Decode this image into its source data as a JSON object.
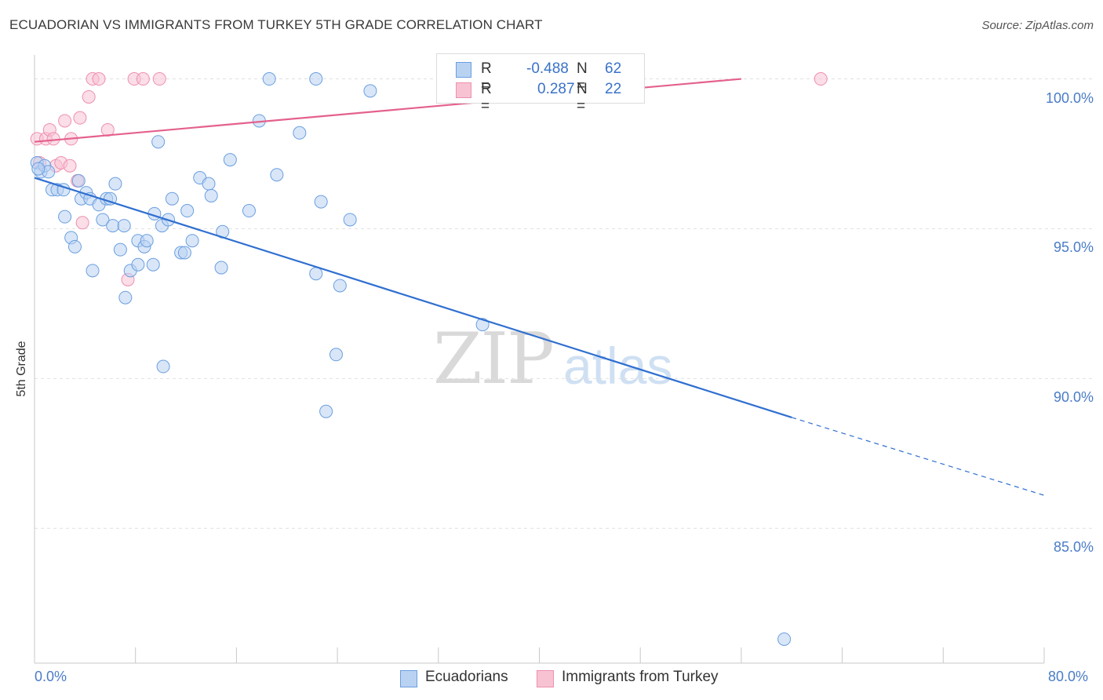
{
  "title": "ECUADORIAN VS IMMIGRANTS FROM TURKEY 5TH GRADE CORRELATION CHART",
  "source": "Source: ZipAtlas.com",
  "watermark": {
    "zip": "ZIP",
    "atlas": "atlas"
  },
  "colors": {
    "blue": "#6a9fe0",
    "blue_fill": "#b9d2f2",
    "blue_line": "#2f6fd0",
    "pink": "#ee8fae",
    "pink_fill": "#f7c3d3",
    "pink_line": "#e4618c",
    "tick_text": "#4a7cc7",
    "grid": "#e0e0e0"
  },
  "legend": {
    "rows": [
      {
        "r_label": "R =",
        "r_value": "-0.488",
        "n_label": "N =",
        "n_value": "62"
      },
      {
        "r_label": "R =",
        "r_value": "0.287",
        "n_label": "N =",
        "n_value": "22"
      }
    ]
  },
  "bottom_legend": [
    "Ecuadorians",
    "Immigrants from Turkey"
  ],
  "chart_data": {
    "type": "scatter",
    "title": "ECUADORIAN VS IMMIGRANTS FROM TURKEY 5TH GRADE CORRELATION CHART",
    "xlabel": "",
    "ylabel": "5th Grade",
    "xlim": [
      0,
      80
    ],
    "ylim": [
      80.5,
      100.8
    ],
    "x_tick_labels": [
      "0.0%",
      "80.0%"
    ],
    "y_ticks": [
      85,
      90,
      95,
      100
    ],
    "y_tick_labels": [
      "85.0%",
      "90.0%",
      "95.0%",
      "100.0%"
    ],
    "grid": true,
    "series": [
      {
        "name": "Ecuadorians",
        "color": "blue",
        "points": [
          [
            0.2,
            97.2
          ],
          [
            0.5,
            96.9
          ],
          [
            0.8,
            97.1
          ],
          [
            1.1,
            96.9
          ],
          [
            1.4,
            96.3
          ],
          [
            1.8,
            96.3
          ],
          [
            2.3,
            96.3
          ],
          [
            2.4,
            95.4
          ],
          [
            2.9,
            94.7
          ],
          [
            3.2,
            94.4
          ],
          [
            3.5,
            96.6
          ],
          [
            3.7,
            96.0
          ],
          [
            4.1,
            96.2
          ],
          [
            4.4,
            96.0
          ],
          [
            4.6,
            93.6
          ],
          [
            5.1,
            95.8
          ],
          [
            5.4,
            95.3
          ],
          [
            5.7,
            96.0
          ],
          [
            6.2,
            95.1
          ],
          [
            6.4,
            96.5
          ],
          [
            6.8,
            94.3
          ],
          [
            7.1,
            95.1
          ],
          [
            7.2,
            92.7
          ],
          [
            7.6,
            93.6
          ],
          [
            8.2,
            93.8
          ],
          [
            8.2,
            94.6
          ],
          [
            8.7,
            94.4
          ],
          [
            8.9,
            94.6
          ],
          [
            9.4,
            93.8
          ],
          [
            9.5,
            95.5
          ],
          [
            9.8,
            97.9
          ],
          [
            10.1,
            95.1
          ],
          [
            10.2,
            90.4
          ],
          [
            10.6,
            95.3
          ],
          [
            10.9,
            96.0
          ],
          [
            11.6,
            94.2
          ],
          [
            11.9,
            94.2
          ],
          [
            12.1,
            95.6
          ],
          [
            12.5,
            94.6
          ],
          [
            13.1,
            96.7
          ],
          [
            13.8,
            96.5
          ],
          [
            14.0,
            96.1
          ],
          [
            14.8,
            93.7
          ],
          [
            14.9,
            94.9
          ],
          [
            15.5,
            97.3
          ],
          [
            17.0,
            95.6
          ],
          [
            17.8,
            98.6
          ],
          [
            18.6,
            100.0
          ],
          [
            19.2,
            96.8
          ],
          [
            21.0,
            98.2
          ],
          [
            22.3,
            100.0
          ],
          [
            22.3,
            93.5
          ],
          [
            22.7,
            95.9
          ],
          [
            23.1,
            88.9
          ],
          [
            23.9,
            90.8
          ],
          [
            24.2,
            93.1
          ],
          [
            25.0,
            95.3
          ],
          [
            26.6,
            99.6
          ],
          [
            35.5,
            91.8
          ],
          [
            59.4,
            81.3
          ],
          [
            0.3,
            97.0
          ],
          [
            6.0,
            96.0
          ]
        ]
      },
      {
        "name": "Immigrants from Turkey",
        "color": "pink",
        "points": [
          [
            0.2,
            98.0
          ],
          [
            0.4,
            97.2
          ],
          [
            0.9,
            98.0
          ],
          [
            1.2,
            98.3
          ],
          [
            1.5,
            98.0
          ],
          [
            1.7,
            97.1
          ],
          [
            2.1,
            97.2
          ],
          [
            2.4,
            98.6
          ],
          [
            2.8,
            97.1
          ],
          [
            2.9,
            98.0
          ],
          [
            3.4,
            96.6
          ],
          [
            3.6,
            98.7
          ],
          [
            3.8,
            95.2
          ],
          [
            4.3,
            99.4
          ],
          [
            4.6,
            100.0
          ],
          [
            5.1,
            100.0
          ],
          [
            5.8,
            98.3
          ],
          [
            7.4,
            93.3
          ],
          [
            7.9,
            100.0
          ],
          [
            8.6,
            100.0
          ],
          [
            9.9,
            100.0
          ],
          [
            62.3,
            100.0
          ]
        ]
      }
    ],
    "trend_lines": [
      {
        "series": "Ecuadorians",
        "from": [
          0,
          96.7
        ],
        "to": [
          60.0,
          88.7
        ],
        "dashed_to": [
          80.0,
          86.1
        ]
      },
      {
        "series": "Immigrants from Turkey",
        "from": [
          0,
          97.9
        ],
        "to": [
          56.0,
          100.0
        ]
      }
    ]
  }
}
